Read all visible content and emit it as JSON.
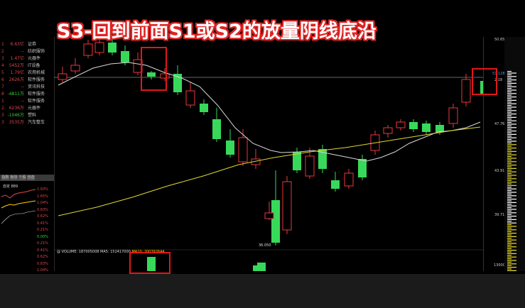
{
  "title": "S3-回到前面S1或S2的放量阴线底沿",
  "sector_list": [
    {
      "rank": "1",
      "value": "6.63亿",
      "name": "证券",
      "neg": false
    },
    {
      "rank": "2",
      "value": "--",
      "name": "纺织服饰",
      "neg": false
    },
    {
      "rank": "3",
      "value": "1.47亿",
      "name": "元器件",
      "neg": false
    },
    {
      "rank": "4",
      "value": "5452万",
      "name": "IT设备",
      "neg": false
    },
    {
      "rank": "5",
      "value": "1.79亿",
      "name": "农用机械",
      "neg": false
    },
    {
      "rank": "6",
      "value": "2626万",
      "name": "软件服务",
      "neg": false
    },
    {
      "rank": "7",
      "value": "--",
      "name": "资讯科技",
      "neg": false
    },
    {
      "rank": "8",
      "value": "-4811万",
      "name": "软件服务",
      "neg": true
    },
    {
      "rank": "1",
      "value": "--",
      "name": "软件服务",
      "neg": false
    },
    {
      "rank": "2",
      "value": "6236万",
      "name": "元器件",
      "neg": false
    },
    {
      "rank": "3",
      "value": "-1046万",
      "name": "塑料",
      "neg": true
    },
    {
      "rank": "3",
      "value": "3535万",
      "name": "汽车整车",
      "neg": false
    }
  ],
  "mini_tabs": [
    "指数",
    "板块",
    "个股",
    "自选"
  ],
  "mini_label": "自定 889",
  "mini_pcts": [
    {
      "v": "1.93%",
      "g": false
    },
    {
      "v": "1.65%",
      "g": false
    },
    {
      "v": "1.04%",
      "g": false
    },
    {
      "v": "0.83%",
      "g": false
    },
    {
      "v": "0.62%",
      "g": false
    },
    {
      "v": "0.41%",
      "g": false
    },
    {
      "v": "0.21%",
      "g": false
    },
    {
      "v": "0.00%",
      "g": true
    },
    {
      "v": "0.21%",
      "g": false
    },
    {
      "v": "0.41%",
      "g": false
    },
    {
      "v": "0.62%",
      "g": false
    },
    {
      "v": "0.83%",
      "g": false
    },
    {
      "v": "1.04%",
      "g": false
    }
  ],
  "price_axis": [
    "50.65",
    "47.76",
    "43.91",
    "39.71"
  ],
  "current_price_tag": "53.128",
  "current_price_tag2": "2.18",
  "low_label": "36.050",
  "volume_info": {
    "vol": "@ VOLUME: 187005008",
    "ma5": "MA5: 152417000",
    "ma10": "MA10: 200392644"
  },
  "vol_axis": "13000",
  "colors": {
    "up": "#e8383d",
    "down": "#38d95a",
    "ma_short": "#d8d8d8",
    "ma_long": "#e0d830",
    "highlight": "#e01818"
  }
}
